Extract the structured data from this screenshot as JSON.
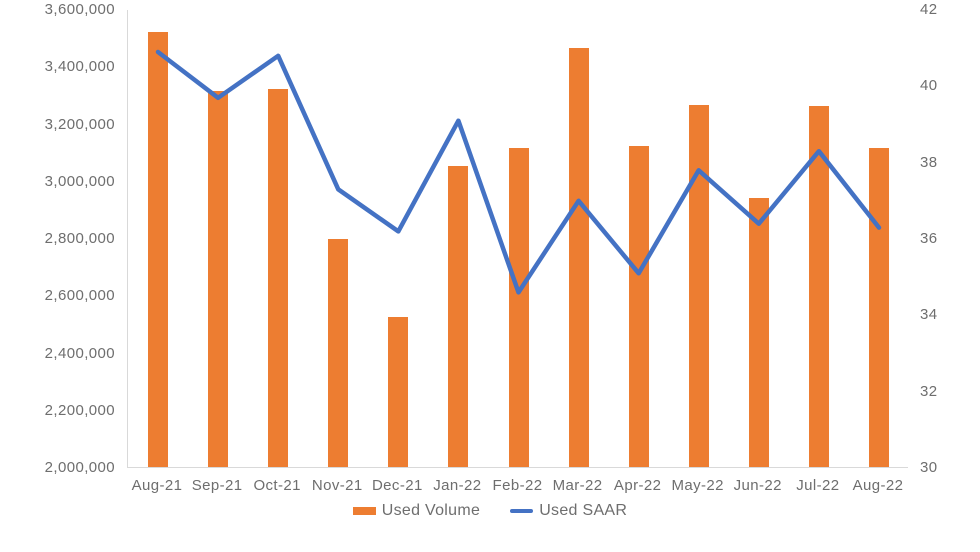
{
  "chart_data": {
    "type": "combo_bar_line",
    "title": "",
    "categories": [
      "Aug-21",
      "Sep-21",
      "Oct-21",
      "Nov-21",
      "Dec-21",
      "Jan-22",
      "Feb-22",
      "Mar-22",
      "Apr-22",
      "May-22",
      "Jun-22",
      "Jul-22",
      "Aug-22"
    ],
    "series": [
      {
        "name": "Used Volume",
        "type": "bar",
        "axis": "left",
        "color": "#ED7D31",
        "values": [
          3520000,
          3315000,
          3320000,
          2795000,
          2525000,
          3050000,
          3115000,
          3465000,
          3120000,
          3265000,
          2940000,
          3260000,
          3115000
        ]
      },
      {
        "name": "Used SAAR",
        "type": "line",
        "axis": "right",
        "color": "#4472C4",
        "values": [
          40.9,
          39.7,
          40.8,
          37.3,
          36.2,
          39.1,
          34.6,
          37.0,
          35.1,
          37.8,
          36.4,
          38.3,
          36.3
        ]
      }
    ],
    "left_axis": {
      "min": 2000000,
      "max": 3600000,
      "step": 200000,
      "tick_labels": [
        "2,000,000",
        "2,200,000",
        "2,400,000",
        "2,600,000",
        "2,800,000",
        "3,000,000",
        "3,200,000",
        "3,400,000",
        "3,600,000"
      ]
    },
    "right_axis": {
      "min": 30,
      "max": 42,
      "step": 2,
      "tick_labels": [
        "30",
        "32",
        "34",
        "36",
        "38",
        "40",
        "42"
      ]
    },
    "grid": false,
    "legend_position": "bottom",
    "legend": [
      {
        "label": "Used Volume",
        "swatch": "rect",
        "color": "#ED7D31"
      },
      {
        "label": "Used SAAR",
        "swatch": "line",
        "color": "#4472C4"
      }
    ]
  },
  "colors": {
    "background": "#FFFFFF",
    "axis_line": "#D9D9D9",
    "tick_text": "#6E6E6E"
  }
}
